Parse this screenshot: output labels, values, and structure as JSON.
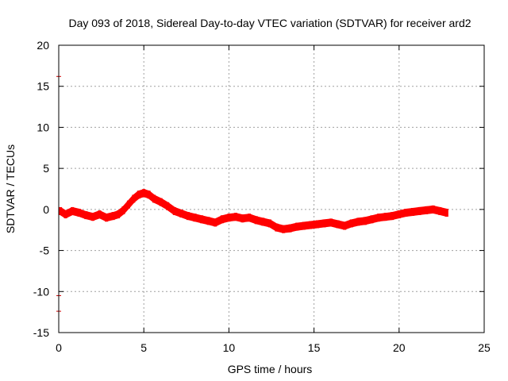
{
  "chart_data": {
    "type": "scatter",
    "title": "Day 093 of 2018, Sidereal Day-to-day VTEC variation (SDTVAR) for receiver ard2",
    "xlabel": "GPS time / hours",
    "ylabel": "SDTVAR / TECUs",
    "xlim": [
      0,
      25
    ],
    "ylim": [
      -15,
      20
    ],
    "xticks": [
      "0",
      "5",
      "10",
      "15",
      "20",
      "25"
    ],
    "yticks": [
      "-15",
      "-10",
      "-5",
      "0",
      "5",
      "10",
      "15",
      "20"
    ],
    "grid": true,
    "series": [
      {
        "name": "SDTVAR",
        "color": "#ff0000",
        "x": [
          0.1,
          0.4,
          0.8,
          1.2,
          1.6,
          2.0,
          2.4,
          2.8,
          3.2,
          3.5,
          3.8,
          4.1,
          4.4,
          4.7,
          5.0,
          5.3,
          5.6,
          6.0,
          6.4,
          6.8,
          7.2,
          7.6,
          8.0,
          8.4,
          8.8,
          9.2,
          9.6,
          10.0,
          10.4,
          10.8,
          11.2,
          11.6,
          12.0,
          12.4,
          12.8,
          13.2,
          13.6,
          14.0,
          14.4,
          14.8,
          15.2,
          15.6,
          16.0,
          16.4,
          16.8,
          17.2,
          17.6,
          18.0,
          18.4,
          18.8,
          19.2,
          19.6,
          20.0,
          20.4,
          20.8,
          21.2,
          21.6,
          22.0,
          22.4,
          22.8
        ],
        "y": [
          -0.2,
          -0.6,
          -0.2,
          -0.4,
          -0.7,
          -0.9,
          -0.6,
          -1.0,
          -0.8,
          -0.6,
          -0.1,
          0.6,
          1.3,
          1.8,
          2.0,
          1.8,
          1.3,
          0.9,
          0.4,
          -0.2,
          -0.5,
          -0.8,
          -1.0,
          -1.2,
          -1.4,
          -1.6,
          -1.2,
          -1.0,
          -0.9,
          -1.1,
          -1.0,
          -1.3,
          -1.5,
          -1.7,
          -2.2,
          -2.4,
          -2.3,
          -2.1,
          -2.0,
          -1.9,
          -1.8,
          -1.7,
          -1.6,
          -1.8,
          -2.0,
          -1.7,
          -1.5,
          -1.4,
          -1.2,
          -1.0,
          -0.9,
          -0.8,
          -0.6,
          -0.4,
          -0.3,
          -0.2,
          -0.1,
          0.0,
          -0.2,
          -0.4
        ]
      }
    ],
    "outliers": [
      {
        "x": 0.0,
        "y": 16.2
      },
      {
        "x": 0.0,
        "y": -10.5
      },
      {
        "x": 0.0,
        "y": -12.4
      }
    ]
  }
}
